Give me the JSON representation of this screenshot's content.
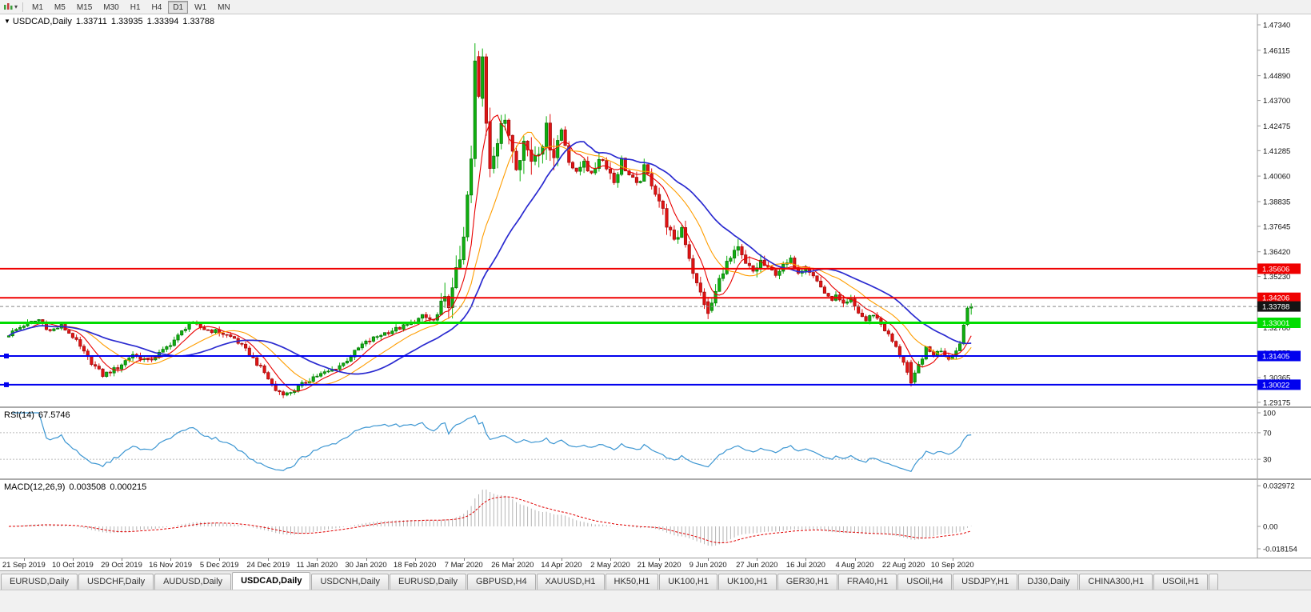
{
  "icons": {
    "menu_caret": "▾",
    "collapse_triangle": "▼"
  },
  "toolbar": {
    "timeframes": [
      "M1",
      "M5",
      "M15",
      "M30",
      "H1",
      "H4",
      "D1",
      "W1",
      "MN"
    ],
    "active_timeframe": "D1"
  },
  "price_pane": {
    "symbol": "USDCAD,Daily",
    "open": "1.33711",
    "high": "1.33935",
    "low": "1.33394",
    "close": "1.33788"
  },
  "rsi_pane": {
    "label": "RSI(14)",
    "value": "67.5746",
    "axis_labels": [
      "100",
      "70",
      "30"
    ],
    "levels": [
      70,
      30
    ]
  },
  "macd_pane": {
    "label": "MACD(12,26,9)",
    "value_main": "0.003508",
    "value_signal": "0.000215",
    "axis_labels": [
      "0.032972",
      "0.00",
      "-0.018154"
    ]
  },
  "chart_data": {
    "type": "candlestick",
    "symbol": "USDCAD",
    "timeframe": "Daily",
    "bars": 257,
    "y_range": [
      1.2898,
      1.4784
    ],
    "y_axis_ticks": [
      "1.47340",
      "1.46115",
      "1.44890",
      "1.43700",
      "1.42475",
      "1.41285",
      "1.40060",
      "1.38835",
      "1.37645",
      "1.36420",
      "1.35230",
      "1.34005",
      "1.32780",
      "1.31555",
      "1.30365",
      "1.29175"
    ],
    "x_labels": [
      "21 Sep 2019",
      "10 Oct 2019",
      "29 Oct 2019",
      "16 Nov 2019",
      "5 Dec 2019",
      "24 Dec 2019",
      "11 Jan 2020",
      "30 Jan 2020",
      "18 Feb 2020",
      "7 Mar 2020",
      "26 Mar 2020",
      "14 Apr 2020",
      "2 May 2020",
      "21 May 2020",
      "9 Jun 2020",
      "27 Jun 2020",
      "16 Jul 2020",
      "4 Aug 2020",
      "22 Aug 2020",
      "10 Sep 2020"
    ],
    "close_anchors": [
      [
        0,
        1.3245
      ],
      [
        4,
        1.329
      ],
      [
        8,
        1.3315
      ],
      [
        11,
        1.326
      ],
      [
        14,
        1.3285
      ],
      [
        17,
        1.3235
      ],
      [
        21,
        1.313
      ],
      [
        25,
        1.3048
      ],
      [
        29,
        1.3085
      ],
      [
        33,
        1.315
      ],
      [
        37,
        1.3115
      ],
      [
        41,
        1.3165
      ],
      [
        45,
        1.3235
      ],
      [
        48,
        1.33
      ],
      [
        52,
        1.327
      ],
      [
        56,
        1.3255
      ],
      [
        60,
        1.3225
      ],
      [
        64,
        1.315
      ],
      [
        68,
        1.306
      ],
      [
        71,
        1.2975
      ],
      [
        74,
        1.2958
      ],
      [
        77,
        1.299
      ],
      [
        81,
        1.304
      ],
      [
        85,
        1.3065
      ],
      [
        89,
        1.3105
      ],
      [
        94,
        1.3195
      ],
      [
        99,
        1.3245
      ],
      [
        103,
        1.327
      ],
      [
        107,
        1.3295
      ],
      [
        110,
        1.333
      ],
      [
        113,
        1.331
      ],
      [
        116,
        1.339
      ],
      [
        118,
        1.344
      ],
      [
        120,
        1.362
      ],
      [
        122,
        1.387
      ],
      [
        123,
        1.408
      ],
      [
        124,
        1.456
      ],
      [
        125,
        1.438
      ],
      [
        126,
        1.458
      ],
      [
        127,
        1.426
      ],
      [
        128,
        1.406
      ],
      [
        129,
        1.413
      ],
      [
        131,
        1.427
      ],
      [
        133,
        1.421
      ],
      [
        135,
        1.408
      ],
      [
        137,
        1.417
      ],
      [
        139,
        1.409
      ],
      [
        141,
        1.415
      ],
      [
        143,
        1.422
      ],
      [
        145,
        1.412
      ],
      [
        147,
        1.423
      ],
      [
        149,
        1.409
      ],
      [
        151,
        1.401
      ],
      [
        153,
        1.409
      ],
      [
        155,
        1.4
      ],
      [
        157,
        1.41
      ],
      [
        159,
        1.406
      ],
      [
        161,
        1.398
      ],
      [
        163,
        1.408
      ],
      [
        165,
        1.401
      ],
      [
        167,
        1.3955
      ],
      [
        169,
        1.404
      ],
      [
        171,
        1.3975
      ],
      [
        173,
        1.389
      ],
      [
        175,
        1.378
      ],
      [
        177,
        1.368
      ],
      [
        179,
        1.376
      ],
      [
        181,
        1.362
      ],
      [
        183,
        1.348
      ],
      [
        185,
        1.34
      ],
      [
        186,
        1.3345
      ],
      [
        188,
        1.3445
      ],
      [
        190,
        1.356
      ],
      [
        192,
        1.3605
      ],
      [
        194,
        1.365
      ],
      [
        196,
        1.3575
      ],
      [
        198,
        1.3545
      ],
      [
        200,
        1.3595
      ],
      [
        202,
        1.3555
      ],
      [
        204,
        1.354
      ],
      [
        206,
        1.357
      ],
      [
        208,
        1.36
      ],
      [
        210,
        1.355
      ],
      [
        212,
        1.3575
      ],
      [
        214,
        1.3525
      ],
      [
        216,
        1.3475
      ],
      [
        218,
        1.3415
      ],
      [
        220,
        1.3425
      ],
      [
        222,
        1.338
      ],
      [
        224,
        1.3405
      ],
      [
        226,
        1.335
      ],
      [
        228,
        1.331
      ],
      [
        230,
        1.3345
      ],
      [
        232,
        1.3295
      ],
      [
        234,
        1.324
      ],
      [
        236,
        1.318
      ],
      [
        238,
        1.3115
      ],
      [
        240,
        1.3005
      ],
      [
        242,
        1.3095
      ],
      [
        244,
        1.3175
      ],
      [
        246,
        1.3145
      ],
      [
        248,
        1.317
      ],
      [
        250,
        1.313
      ],
      [
        252,
        1.3165
      ],
      [
        253,
        1.3205
      ],
      [
        254,
        1.329
      ],
      [
        255,
        1.3371
      ],
      [
        256,
        1.33788
      ]
    ],
    "override_bars": [
      {
        "i": 124,
        "o": 1.409,
        "h": 1.4645,
        "l": 1.405,
        "c": 1.456
      },
      {
        "i": 126,
        "o": 1.438,
        "h": 1.462,
        "l": 1.434,
        "c": 1.458
      },
      {
        "i": 127,
        "o": 1.458,
        "h": 1.4595,
        "l": 1.42,
        "c": 1.426
      },
      {
        "i": 186,
        "o": 1.3402,
        "h": 1.3425,
        "l": 1.3318,
        "c": 1.3345
      },
      {
        "i": 240,
        "o": 1.311,
        "h": 1.3122,
        "l": 1.2994,
        "c": 1.301
      },
      {
        "i": 255,
        "o": 1.3292,
        "h": 1.338,
        "l": 1.3285,
        "c": 1.3371
      },
      {
        "i": 256,
        "o": 1.33711,
        "h": 1.33935,
        "l": 1.33394,
        "c": 1.33788
      }
    ],
    "volatility_zones": [
      [
        115,
        147,
        0.009
      ],
      [
        148,
        172,
        0.0045
      ],
      [
        173,
        200,
        0.005
      ],
      [
        201,
        230,
        0.003
      ]
    ],
    "base_volatility": 0.0022,
    "candle_colors": {
      "up": "#0fb00f",
      "up_border": "#067006",
      "down": "#e01414",
      "down_border": "#9c0b0b"
    },
    "moving_averages": [
      {
        "period": 7,
        "color": "#e80000",
        "width": 1.1
      },
      {
        "period": 16,
        "color": "#ff9d00",
        "width": 1.1
      },
      {
        "period": 30,
        "color": "#2a2ad0",
        "width": 1.7
      }
    ],
    "horizontal_lines": [
      {
        "price": 1.35606,
        "label": "1.35606",
        "color": "#ef0000",
        "width": 2
      },
      {
        "price": 1.34206,
        "label": "1.34206",
        "color": "#ef0000",
        "width": 2
      },
      {
        "price": 1.33001,
        "label": "1.33001",
        "color": "#00dc00",
        "width": 3
      },
      {
        "price": 1.31405,
        "label": "1.31405",
        "color": "#0000ee",
        "width": 2,
        "handle": true
      },
      {
        "price": 1.30022,
        "label": "1.30022",
        "color": "#0000ee",
        "width": 2,
        "handle": true
      }
    ],
    "current_price": {
      "price": 1.33788,
      "label": "1.33788"
    },
    "rsi": {
      "period": 14,
      "color": "#3c96d2"
    },
    "macd": {
      "fast": 12,
      "slow": 26,
      "signal": 9,
      "hist_color": "#b4b4b4",
      "signal_color": "#e00000"
    }
  },
  "tabs": {
    "items": [
      "EURUSD,Daily",
      "USDCHF,Daily",
      "AUDUSD,Daily",
      "USDCAD,Daily",
      "USDCNH,Daily",
      "EURUSD,Daily",
      "GBPUSD,H4",
      "XAUUSD,H1",
      "HK50,H1",
      "UK100,H1",
      "UK100,H1",
      "GER30,H1",
      "FRA40,H1",
      "USOil,H4",
      "USDJPY,H1",
      "DJ30,Daily",
      "CHINA300,H1",
      "USOil,H1"
    ],
    "active_index": 3
  }
}
